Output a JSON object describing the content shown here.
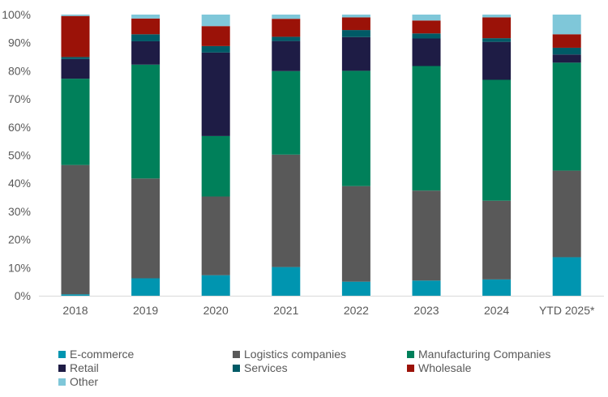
{
  "chart_data": {
    "type": "bar",
    "stacked": true,
    "title": "",
    "xlabel": "",
    "ylabel": "",
    "ylim": [
      0,
      100
    ],
    "y_ticks": [
      "0%",
      "10%",
      "20%",
      "30%",
      "40%",
      "50%",
      "60%",
      "70%",
      "80%",
      "90%",
      "100%"
    ],
    "categories": [
      "2018",
      "2019",
      "2020",
      "2021",
      "2022",
      "2023",
      "2024",
      "YTD 2025*"
    ],
    "series": [
      {
        "name": "E-commerce",
        "color": "#0095B0",
        "values": [
          0.5,
          6.2,
          7.3,
          10.2,
          5.0,
          5.4,
          5.8,
          13.7
        ]
      },
      {
        "name": "Logistics companies",
        "color": "#595959",
        "values": [
          46.0,
          35.5,
          28.0,
          40.0,
          34.0,
          32.0,
          28.0,
          30.8
        ]
      },
      {
        "name": "Manufacturing Companies",
        "color": "#00805A",
        "values": [
          30.7,
          40.5,
          21.5,
          29.7,
          41.0,
          44.3,
          43.0,
          38.4
        ]
      },
      {
        "name": "Retail",
        "color": "#1E1C45",
        "values": [
          7.0,
          8.3,
          29.7,
          10.7,
          12.0,
          9.8,
          13.5,
          2.9
        ]
      },
      {
        "name": "Services",
        "color": "#005A66",
        "values": [
          0.7,
          2.5,
          2.3,
          1.5,
          2.5,
          1.8,
          1.3,
          2.4
        ]
      },
      {
        "name": "Wholesale",
        "color": "#9B1208",
        "values": [
          14.6,
          5.6,
          7.1,
          6.4,
          4.5,
          4.6,
          7.4,
          4.8
        ]
      },
      {
        "name": "Other",
        "color": "#7FC7D9",
        "values": [
          0.5,
          1.4,
          4.1,
          1.5,
          1.0,
          2.1,
          1.0,
          7.0
        ]
      }
    ],
    "legend_position": "bottom",
    "grid": false
  }
}
